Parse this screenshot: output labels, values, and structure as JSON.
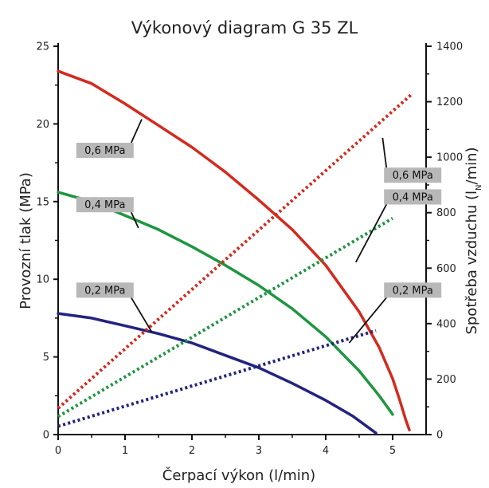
{
  "chart_data": {
    "type": "line",
    "title": "Výkonový diagram G 35 ZL",
    "xlabel": "Čerpací výkon (l/min)",
    "ylabel": "Provozní tlak (MPa)",
    "y2label": "Spotřeba vzduchu (l",
    "y2label_sub": "N",
    "y2label_end": "/min)",
    "xlim": [
      0,
      5.5
    ],
    "ylim": [
      0,
      25
    ],
    "y2lim": [
      0,
      1400
    ],
    "x_ticks": [
      "0",
      "1",
      "2",
      "3",
      "4",
      "5"
    ],
    "y_ticks": [
      "0",
      "5",
      "10",
      "15",
      "20",
      "25"
    ],
    "y2_ticks": [
      "0",
      "200",
      "400",
      "600",
      "800",
      "1000",
      "1200",
      "1400"
    ],
    "series": [
      {
        "name": "0,6 MPa",
        "axis": "left",
        "style": "solid",
        "color": "#d42a1e",
        "x": [
          0,
          0.5,
          1,
          1.5,
          2,
          2.5,
          3,
          3.5,
          4,
          4.5,
          4.8,
          5.0,
          5.1,
          5.2,
          5.25
        ],
        "y": [
          23.4,
          22.6,
          21.3,
          19.9,
          18.5,
          16.9,
          15.1,
          13.2,
          10.9,
          7.9,
          5.6,
          3.6,
          2.3,
          0.9,
          0.3
        ]
      },
      {
        "name": "0,4 MPa",
        "axis": "left",
        "style": "solid",
        "color": "#1e9640",
        "x": [
          0,
          0.5,
          1,
          1.5,
          2,
          2.5,
          3,
          3.5,
          4,
          4.5,
          4.8,
          5.0
        ],
        "y": [
          15.6,
          15.0,
          14.1,
          13.2,
          12.1,
          10.9,
          9.6,
          8.1,
          6.3,
          4.1,
          2.5,
          1.3
        ]
      },
      {
        "name": "0,2 MPa",
        "axis": "left",
        "style": "solid",
        "color": "#23237f",
        "x": [
          0,
          0.5,
          1,
          1.5,
          2,
          2.5,
          3,
          3.5,
          4,
          4.4,
          4.75
        ],
        "y": [
          7.8,
          7.5,
          7.0,
          6.5,
          5.9,
          5.1,
          4.3,
          3.3,
          2.2,
          1.2,
          0.1
        ]
      },
      {
        "name": "0,6 MPa",
        "axis": "right",
        "style": "dotted",
        "color": "#d42a1e",
        "x": [
          0,
          5.3
        ],
        "y": [
          95,
          1230
        ]
      },
      {
        "name": "0,4 MPa",
        "axis": "right",
        "style": "dotted",
        "color": "#1e9640",
        "x": [
          0,
          5.0
        ],
        "y": [
          65,
          780
        ]
      },
      {
        "name": "0,2 MPa",
        "axis": "right",
        "style": "dotted",
        "color": "#23237f",
        "x": [
          0,
          4.75
        ],
        "y": [
          30,
          375
        ]
      }
    ],
    "annotations": [
      {
        "text": "0,6 MPa",
        "label_x": 0.7,
        "label_y": 18.3,
        "point_x": 1.25,
        "point_y": 20.3
      },
      {
        "text": "0,4 MPa",
        "label_x": 0.7,
        "label_y": 14.8,
        "point_x": 1.2,
        "point_y": 13.3
      },
      {
        "text": "0,2 MPa",
        "label_x": 0.7,
        "label_y": 9.3,
        "point_x": 1.4,
        "point_y": 6.6
      },
      {
        "text": "0,6 MPa",
        "label_x": 5.3,
        "label_y": 16.7,
        "point_x": 4.85,
        "point_y": 19.1
      },
      {
        "text": "0,4 MPa",
        "label_x": 5.3,
        "label_y": 15.3,
        "point_x": 4.45,
        "point_y": 11.1
      },
      {
        "text": "0,2 MPa",
        "label_x": 5.3,
        "label_y": 9.3,
        "point_x": 4.35,
        "point_y": 5.9
      }
    ],
    "grid": false,
    "legend": "none"
  }
}
